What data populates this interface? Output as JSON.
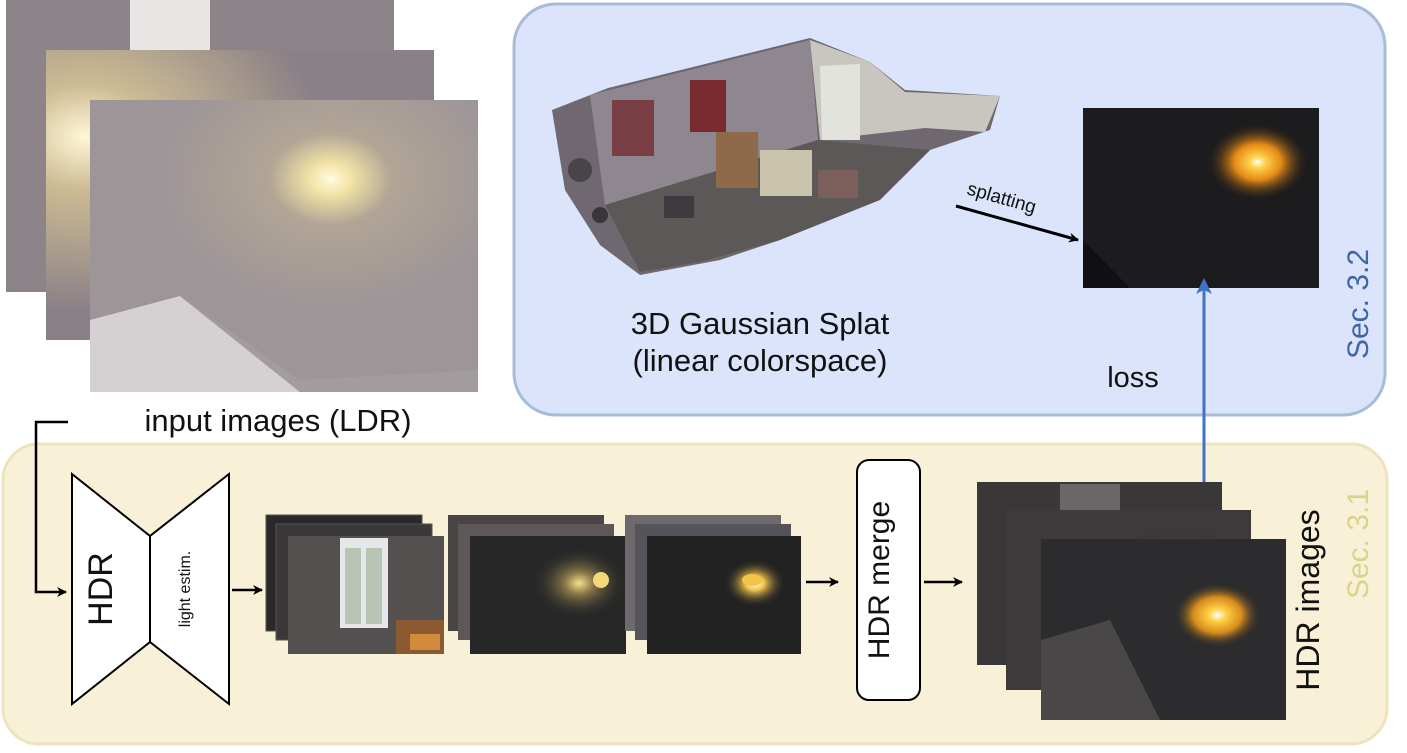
{
  "colors": {
    "panel_top_fill": "#dbe4fb",
    "panel_top_stroke": "#a8bbd9",
    "panel_bottom_fill": "#f8f1d8",
    "panel_bottom_stroke": "#ede3bd",
    "sec_top_color": "#3f66a8",
    "sec_bottom_color": "#d9d48a",
    "loss_arrow_color": "#3f73c8"
  },
  "top_panel": {
    "section_label": "Sec. 3.2",
    "gaussian_title_line1": "3D Gaussian Splat",
    "gaussian_title_line2": "(linear colorspace)",
    "splatting_label": "splatting",
    "loss_label": "loss"
  },
  "input": {
    "label": "input images (LDR)"
  },
  "bottom_panel": {
    "section_label": "Sec. 3.1",
    "network_hdr_label": "HDR",
    "network_light_label": "light estim.",
    "merge_label": "HDR merge",
    "hdr_images_label": "HDR images"
  },
  "icons": {
    "room_render": "gaussian-splat-room-icon",
    "arrow": "arrow-icon"
  }
}
